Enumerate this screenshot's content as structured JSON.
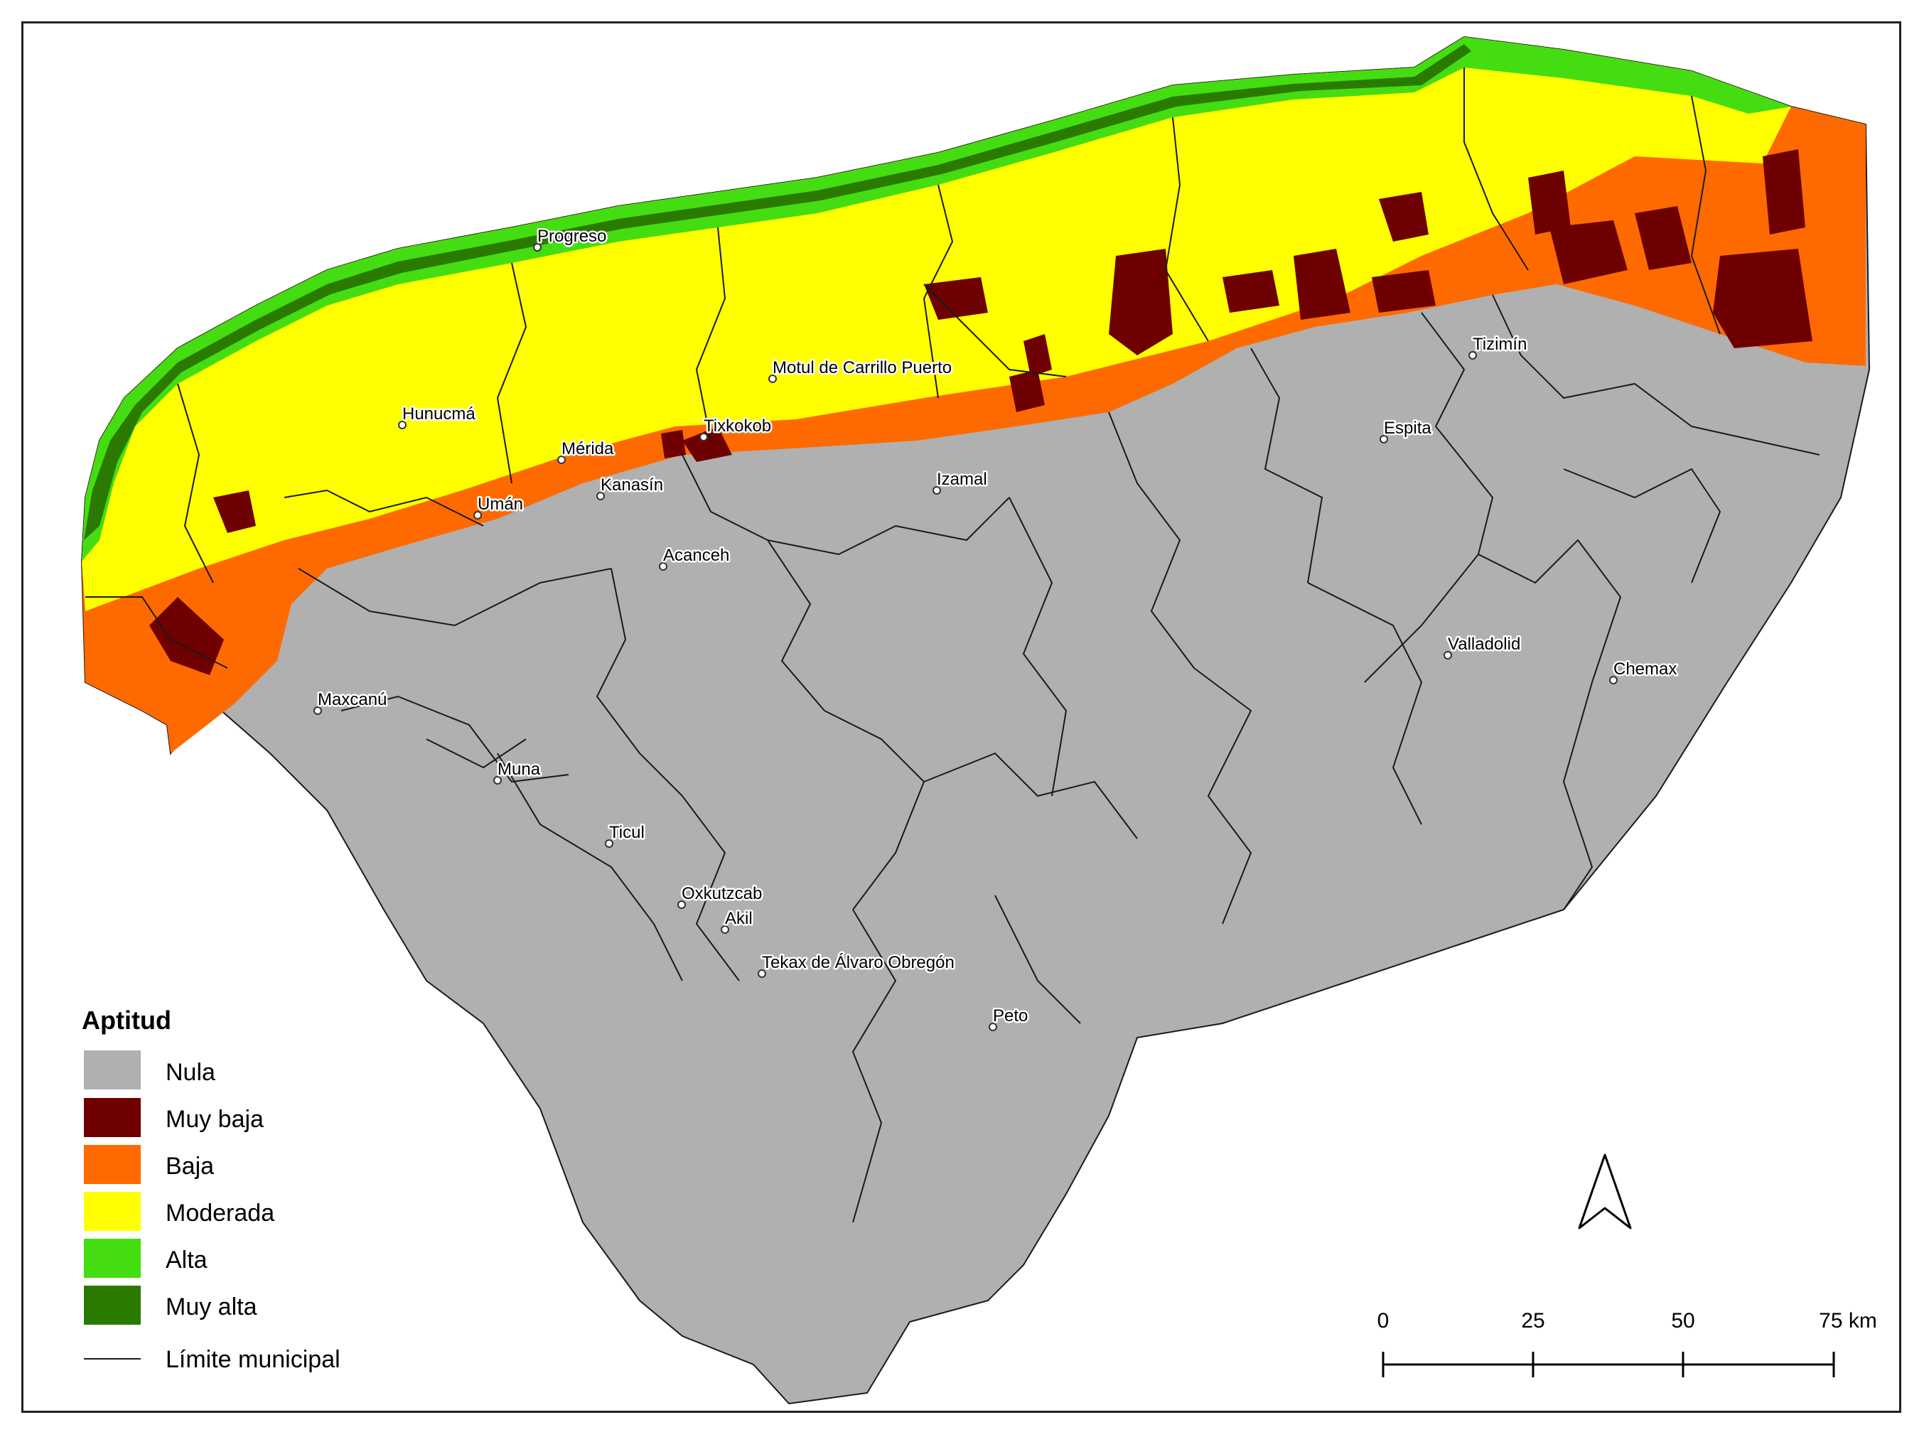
{
  "legend": {
    "title": "Aptitud",
    "items": [
      {
        "label": "Nula",
        "color": "#b0b0b0"
      },
      {
        "label": "Muy baja",
        "color": "#6e0000"
      },
      {
        "label": "Baja",
        "color": "#ff6a00"
      },
      {
        "label": "Moderada",
        "color": "#ffff00"
      },
      {
        "label": "Alta",
        "color": "#44dd11"
      },
      {
        "label": "Muy alta",
        "color": "#2a7a00"
      }
    ],
    "boundary_label": "Límite municipal"
  },
  "cities": [
    {
      "name": "Progreso"
    },
    {
      "name": "Hunucmá"
    },
    {
      "name": "Mérida"
    },
    {
      "name": "Tixkokob"
    },
    {
      "name": "Motul de Carrillo Puerto"
    },
    {
      "name": "Kanasín"
    },
    {
      "name": "Umán"
    },
    {
      "name": "Izamal"
    },
    {
      "name": "Tizimín"
    },
    {
      "name": "Espita"
    },
    {
      "name": "Acanceh"
    },
    {
      "name": "Valladolid"
    },
    {
      "name": "Chemax"
    },
    {
      "name": "Maxcanú"
    },
    {
      "name": "Muna"
    },
    {
      "name": "Ticul"
    },
    {
      "name": "Oxkutzcab"
    },
    {
      "name": "Akil"
    },
    {
      "name": "Tekax de Álvaro Obregón"
    },
    {
      "name": "Peto"
    }
  ],
  "scale_bar": {
    "ticks": [
      "0",
      "25",
      "50",
      "75 km"
    ]
  },
  "north_arrow": {
    "icon": "north-arrow-icon"
  }
}
